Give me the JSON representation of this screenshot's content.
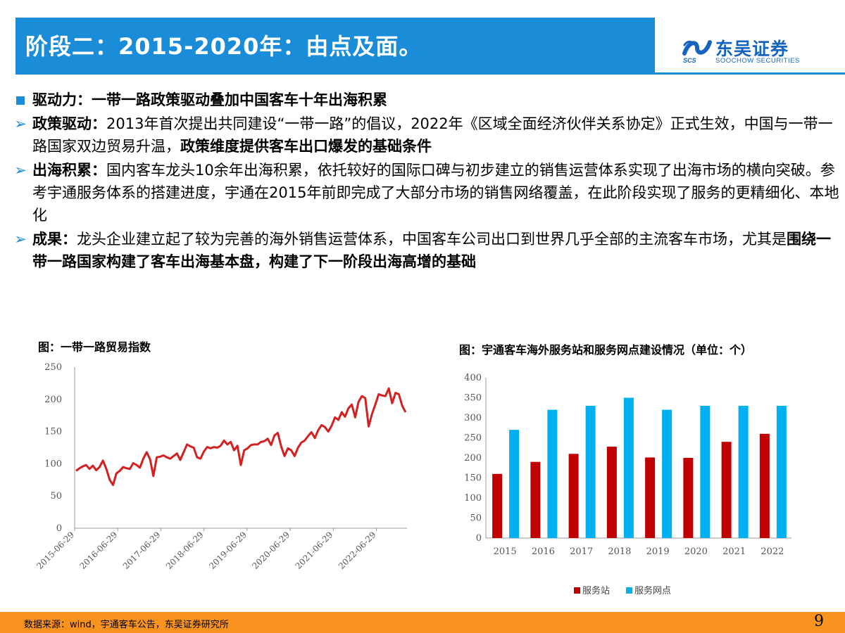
{
  "header": {
    "title": "阶段二：2015-2020年：由点及面。",
    "logo_cn": "东吴证券",
    "logo_en": "SOOCHOW SECURITIES",
    "logo_abbr": "SCS"
  },
  "bullets": [
    {
      "bold": "驱动力：一带一路政策驱动叠加中国客车十年出海积累",
      "rest": "",
      "tail_bold": ""
    },
    {
      "bold": "政策驱动：",
      "rest": "2013年首次提出共同建设“一带一路”的倡议，2022年《区域全面经济伙伴关系协定》正式生效，中国与一带一路国家双边贸易升温，",
      "tail_bold": "政策维度提供客车出口爆发的基础条件"
    },
    {
      "bold": "出海积累：",
      "rest": "国内客车龙头10余年出海积累，依托较好的国际口碑与初步建立的销售运营体系实现了出海市场的横向突破。参考宇通服务体系的搭建进度，宇通在2015年前即完成了大部分市场的销售网络覆盖，在此阶段实现了服务的更精细化、本地化",
      "tail_bold": ""
    },
    {
      "bold": "成果：",
      "rest": "龙头企业建立起了较为完善的海外销售运营体系，中国客车公司出口到世界几乎全部的主流客车市场，尤其是",
      "tail_bold": "围绕一带一路国家构建了客车出海基本盘，构建了下一阶段出海高增的基础"
    }
  ],
  "footer": {
    "source": "数据来源：wind，宇通客车公告，东吴证券研究所",
    "page_number": "9"
  },
  "colors": {
    "brand_blue": "#1a8cd8",
    "footer_orange": "#f7931e",
    "line_red": "#d42020",
    "bar_red": "#c00000",
    "bar_blue": "#00b0f0"
  },
  "chart_data": [
    {
      "type": "line",
      "title": "图：一带一路贸易指数",
      "ylim": [
        0,
        250
      ],
      "yticks": [
        0,
        50,
        100,
        150,
        200,
        250
      ],
      "xtick_labels": [
        "2015-06-29",
        "2016-06-29",
        "2017-06-29",
        "2018-06-29",
        "2019-06-29",
        "2020-06-29",
        "2021-06-29",
        "2022-06-29"
      ],
      "x_start": 2015.49,
      "x_end": 2023.2,
      "series": [
        {
          "values": [
            89,
            93,
            96,
            98,
            92,
            97,
            90,
            95,
            105,
            92,
            75,
            67,
            85,
            89,
            95,
            93,
            92,
            101,
            98,
            94,
            108,
            118,
            107,
            81,
            110,
            111,
            113,
            110,
            108,
            112,
            116,
            106,
            118,
            130,
            127,
            125,
            110,
            108,
            119,
            126,
            124,
            126,
            125,
            128,
            136,
            130,
            134,
            121,
            128,
            98,
            121,
            124,
            129,
            130,
            130,
            134,
            135,
            139,
            129,
            144,
            148,
            127,
            112,
            124,
            121,
            112,
            125,
            133,
            136,
            143,
            149,
            140,
            152,
            160,
            157,
            150,
            159,
            172,
            168,
            180,
            173,
            186,
            192,
            172,
            196,
            205,
            202,
            158,
            177,
            192,
            208,
            206,
            205,
            217,
            194,
            210,
            208,
            190,
            180
          ]
        }
      ]
    },
    {
      "type": "bar",
      "title": "图：宇通客车海外服务站和服务网点建设情况（单位：个）",
      "categories": [
        "2015",
        "2016",
        "2017",
        "2018",
        "2019",
        "2020",
        "2021",
        "2022"
      ],
      "ylim": [
        0,
        400
      ],
      "yticks": [
        0,
        50,
        100,
        150,
        200,
        250,
        300,
        350,
        400
      ],
      "series": [
        {
          "name": "服务站",
          "values": [
            160,
            190,
            210,
            228,
            201,
            200,
            240,
            260
          ]
        },
        {
          "name": "服务网点",
          "values": [
            270,
            320,
            330,
            350,
            320,
            330,
            330,
            330
          ]
        }
      ]
    }
  ]
}
